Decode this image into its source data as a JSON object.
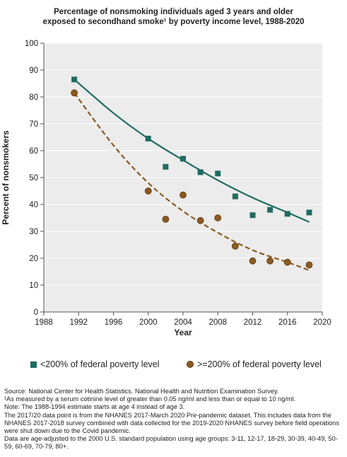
{
  "chart_data": {
    "type": "scatter",
    "title_lines": [
      "Percentage of nonsmoking individuals aged 3 years and older",
      "exposed to secondhand smoke¹ by poverty income level, 1988-2020"
    ],
    "xlabel": "Year",
    "ylabel": "Percent of nonsmokers",
    "xlim": [
      1988,
      2020
    ],
    "ylim": [
      0,
      100
    ],
    "xticks": [
      1988,
      1992,
      1996,
      2000,
      2004,
      2008,
      2012,
      2016,
      2020
    ],
    "yticks": [
      0,
      10,
      20,
      30,
      40,
      50,
      60,
      70,
      80,
      90,
      100
    ],
    "grid": "horizontal",
    "legend_position": "bottom",
    "series": [
      {
        "name": "<200% of federal poverty level",
        "marker": "square",
        "color": "#1f6b60",
        "x": [
          1991.5,
          2000,
          2002,
          2004,
          2006,
          2008,
          2010,
          2012,
          2014,
          2016,
          2018.5
        ],
        "y": [
          86.5,
          64.5,
          54,
          57,
          52,
          51.5,
          43,
          36,
          38,
          36.5,
          37
        ],
        "trend": {
          "style": "solid",
          "x": [
            1991.5,
            1996,
            2000,
            2004,
            2008,
            2012,
            2016,
            2018.5
          ],
          "y": [
            86.5,
            74,
            64.5,
            56.5,
            49,
            42.5,
            37,
            33.5
          ]
        }
      },
      {
        "name": ">=200% of federal poverty level",
        "marker": "circle",
        "color": "#8a5a1e",
        "x": [
          1991.5,
          2000,
          2002,
          2004,
          2006,
          2008,
          2010,
          2012,
          2014,
          2016,
          2018.5
        ],
        "y": [
          81.5,
          45,
          34.5,
          43.5,
          34,
          35,
          24.5,
          19,
          19,
          18.5,
          17.5
        ],
        "trend": {
          "style": "dashed",
          "x": [
            1991.5,
            1996,
            2000,
            2004,
            2008,
            2012,
            2016,
            2018.5
          ],
          "y": [
            81.5,
            62,
            48,
            37.5,
            29.5,
            23,
            18.5,
            15.5
          ]
        }
      }
    ]
  },
  "notes": [
    "Source: National Center for Health Statistics. National Health and Nutrition Examination Survey.",
    "¹As measured by a serum cotinine level of greater than 0.05 ng/ml and less than or equal to 10 ng/ml.",
    "Note: The 1988-1994 estimate starts at age 4 instead of age 3.",
    "The 2017/20 data point is from the NHANES 2017-March 2020 Pre-pandemic dataset. This includes data from the NHANES 2017-2018 survey combined with data collected for the 2019-2020 NHANES survey before field operations were shut down due to the Covid pandemic.",
    "Data are age-adjusted to the 2000 U.S. standard population using age groups: 3-11, 12-17, 18-29, 30-39, 40-49, 50-59, 60-69, 70-79, 80+."
  ]
}
